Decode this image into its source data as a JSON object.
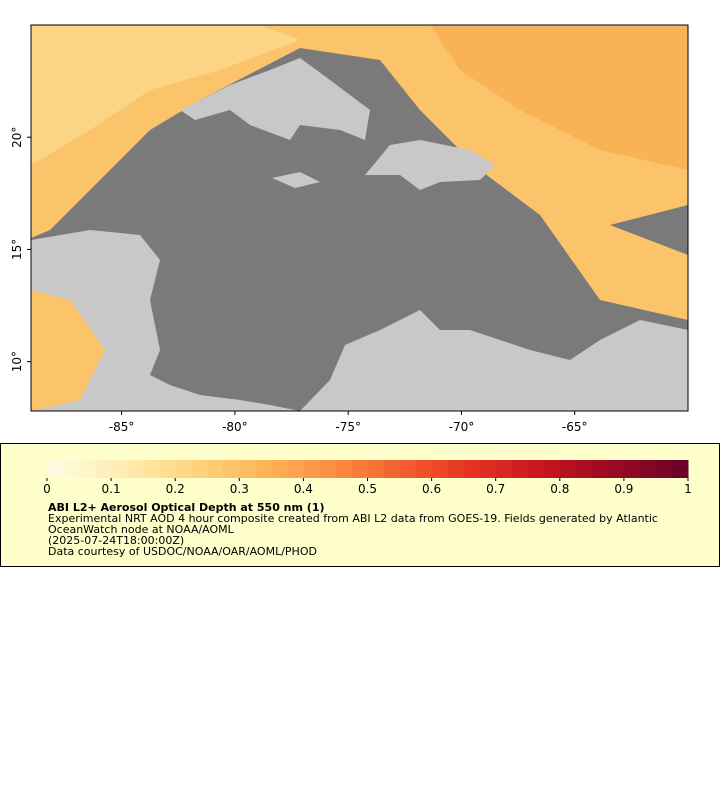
{
  "map": {
    "xlim": [
      -89,
      -60
    ],
    "ylim": [
      7.8,
      25
    ],
    "xticks": [
      {
        "value": -85,
        "label": "-85°"
      },
      {
        "value": -80,
        "label": "-80°"
      },
      {
        "value": -75,
        "label": "-75°"
      },
      {
        "value": -70,
        "label": "-70°"
      },
      {
        "value": -65,
        "label": "-65°"
      }
    ],
    "yticks": [
      {
        "value": 10,
        "label": "10°"
      },
      {
        "value": 15,
        "label": "15°"
      },
      {
        "value": 20,
        "label": "20°"
      }
    ]
  },
  "colorbar": {
    "lim": [
      0,
      1
    ],
    "ticks": [
      0,
      0.1,
      0.2,
      0.3,
      0.4,
      0.5,
      0.6,
      0.7,
      0.8,
      0.9,
      1
    ],
    "colors": [
      "#fffbe0",
      "#feedb0",
      "#fed67e",
      "#fdb55a",
      "#fc8e42",
      "#f4602f",
      "#e53222",
      "#c71620",
      "#9b0a24",
      "#6e0328"
    ]
  },
  "legend": {
    "title": "ABI L2+ Aerosol Optical Depth at 550 nm (1)",
    "lines": [
      "Experimental NRT AOD 4 hour composite created from ABI L2 data from GOES-19. Fields generated by Atlantic",
      "OceanWatch node at NOAA/AOML",
      "(2025-07-24T18:00:00Z)",
      "Data courtesy of USDOC/NOAA/OAR/AOML/PHOD"
    ]
  }
}
